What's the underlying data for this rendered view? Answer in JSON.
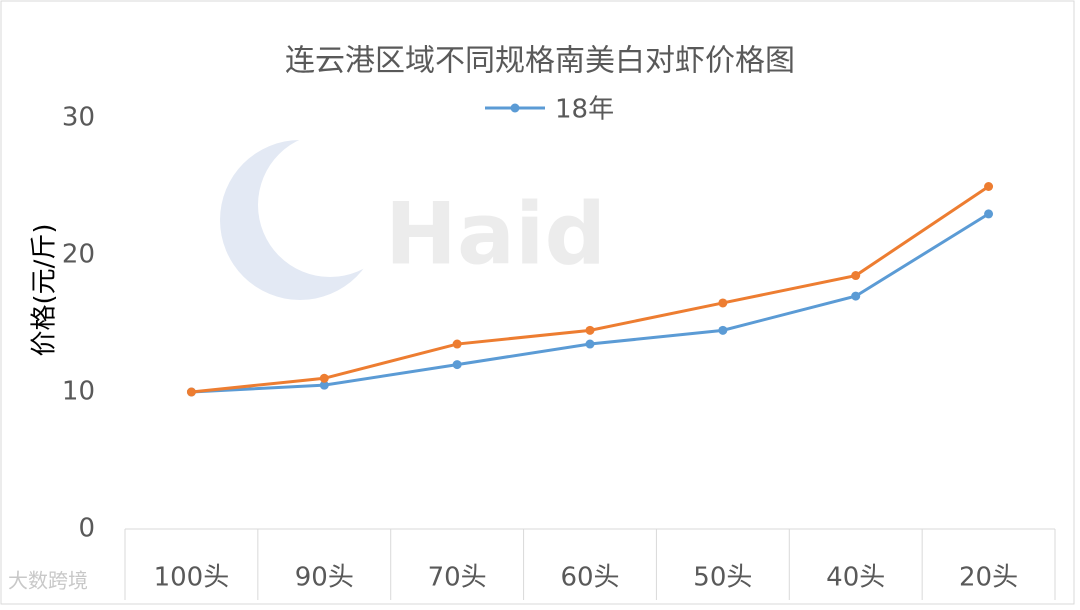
{
  "chart_data": {
    "type": "line",
    "title": "连云港区域不同规格南美白对虾价格图",
    "y_label": "价格(元/斤)",
    "categories": [
      "100头",
      "90头",
      "70头",
      "60头",
      "50头",
      "40头",
      "20头"
    ],
    "series": [
      {
        "name": "18年",
        "color": "#5b9bd5",
        "values": [
          10,
          10.5,
          12,
          13.5,
          14.5,
          17,
          23
        ]
      },
      {
        "color": "#ed7d31",
        "values": [
          10,
          11,
          13.5,
          14.5,
          16.5,
          18.5,
          25
        ]
      }
    ],
    "ylim": [
      0,
      30
    ],
    "yticks": [
      0,
      10,
      20,
      30
    ],
    "grid": false,
    "watermark": "Haid",
    "source_watermark": "大数跨境"
  }
}
